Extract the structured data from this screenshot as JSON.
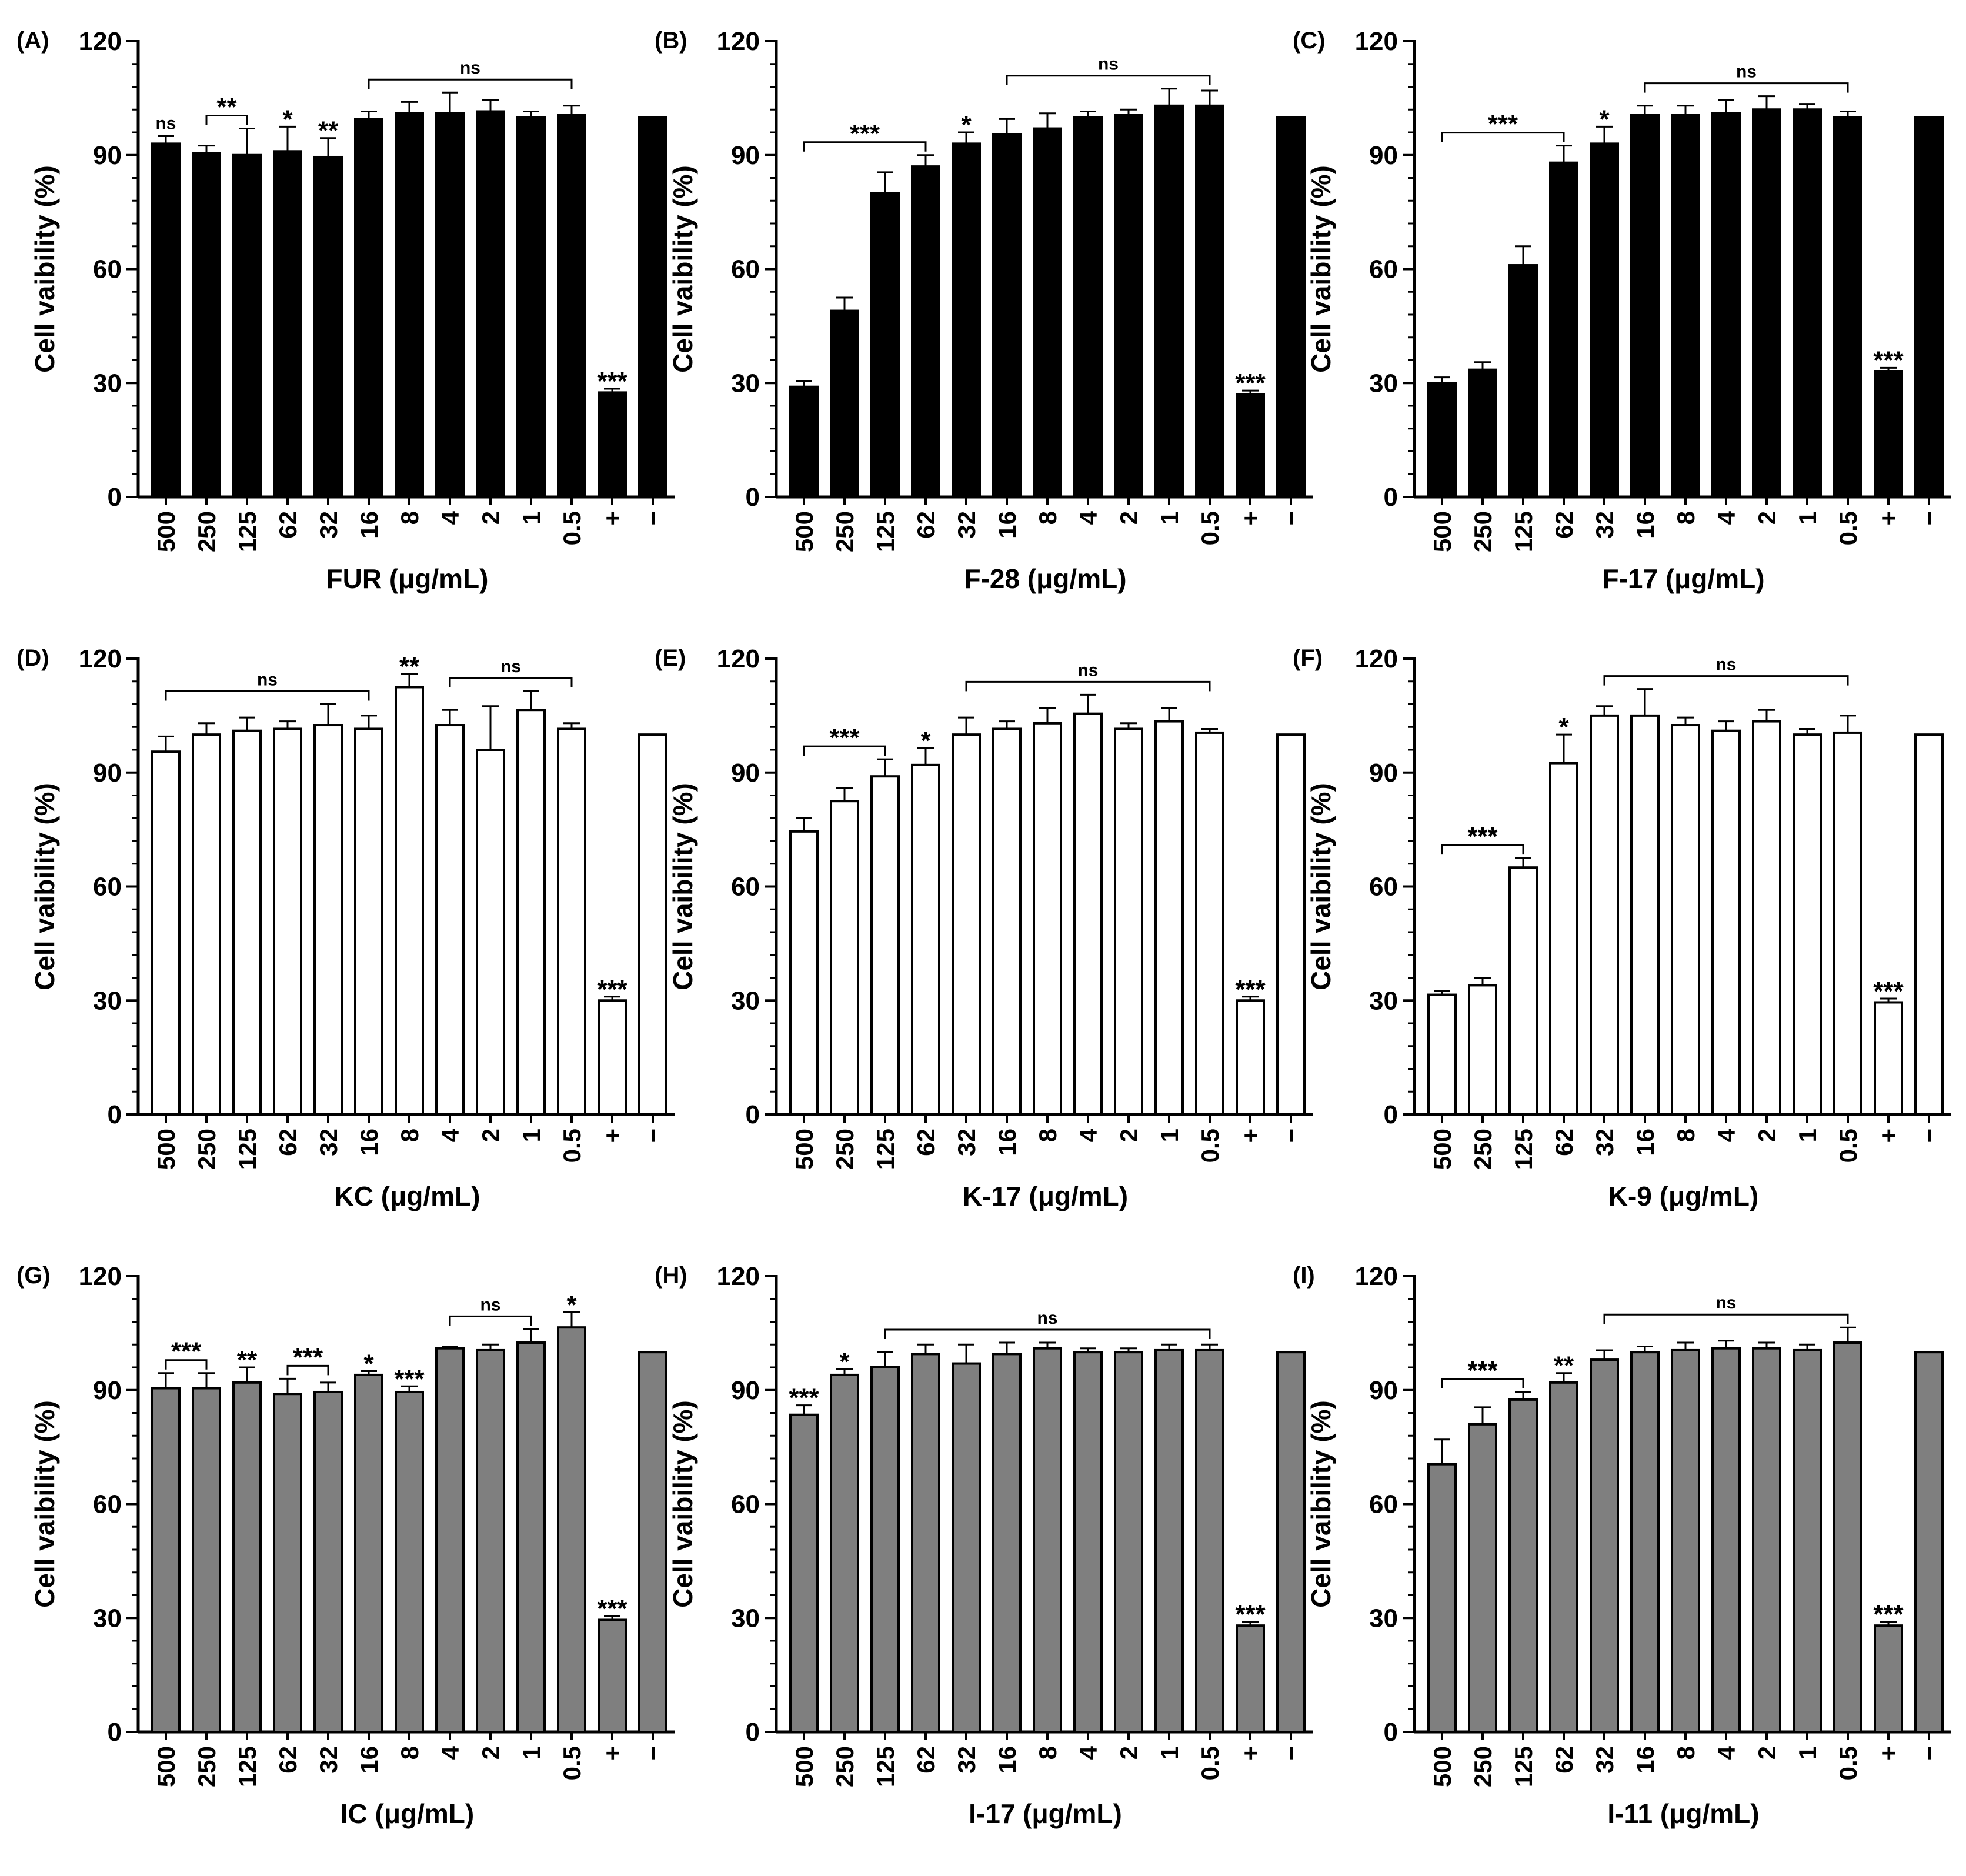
{
  "figure": {
    "y_axis_label": "Cell vaibility (%)"
  },
  "chart_data": [
    {
      "type": "bar",
      "panel": "(A)",
      "xlabel": "FUR (μg/mL)",
      "ylabel": "Cell vaibility (%)",
      "ylim": [
        0,
        120
      ],
      "yticks": [
        0,
        30,
        60,
        90,
        120
      ],
      "bar_color": "#000000",
      "categories": [
        "500",
        "250",
        "125",
        "62",
        "32",
        "16",
        "8",
        "4",
        "2",
        "1",
        "0.5",
        "+",
        "−"
      ],
      "values": [
        93,
        90.5,
        90,
        91,
        89.5,
        99.5,
        101,
        101,
        101.5,
        100,
        100.5,
        27.5,
        100
      ],
      "errors": [
        2,
        2,
        7,
        6.5,
        5,
        2,
        3,
        5.5,
        3,
        1.5,
        2.5,
        1,
        0
      ],
      "annotations": [
        {
          "label": "ns",
          "at": 0,
          "type": "single"
        },
        {
          "label": "**",
          "from": 1,
          "to": 2,
          "type": "bracket"
        },
        {
          "label": "*",
          "at": 3,
          "type": "single"
        },
        {
          "label": "**",
          "at": 4,
          "type": "single"
        },
        {
          "label": "ns",
          "from": 5,
          "to": 10,
          "type": "bracket"
        },
        {
          "label": "***",
          "at": 11,
          "type": "single"
        }
      ]
    },
    {
      "type": "bar",
      "panel": "(B)",
      "xlabel": "F-28 (μg/mL)",
      "ylabel": "Cell vaibility (%)",
      "ylim": [
        0,
        120
      ],
      "yticks": [
        0,
        30,
        60,
        90,
        120
      ],
      "bar_color": "#000000",
      "categories": [
        "500",
        "250",
        "125",
        "62",
        "32",
        "16",
        "8",
        "4",
        "2",
        "1",
        "0.5",
        "+",
        "−"
      ],
      "values": [
        29,
        49,
        80,
        87,
        93,
        95.5,
        97,
        100,
        100.5,
        103,
        103,
        27,
        100
      ],
      "errors": [
        1.5,
        3.5,
        5.5,
        3,
        3,
        4,
        4,
        1.5,
        1.5,
        4.5,
        4,
        1,
        0
      ],
      "annotations": [
        {
          "label": "***",
          "from": 0,
          "to": 3,
          "type": "bracket"
        },
        {
          "label": "*",
          "at": 4,
          "type": "single"
        },
        {
          "label": "ns",
          "from": 5,
          "to": 10,
          "type": "bracket"
        },
        {
          "label": "***",
          "at": 11,
          "type": "single"
        }
      ]
    },
    {
      "type": "bar",
      "panel": "(C)",
      "xlabel": "F-17 (μg/mL)",
      "ylabel": "Cell vaibility (%)",
      "ylim": [
        0,
        120
      ],
      "yticks": [
        0,
        30,
        60,
        90,
        120
      ],
      "bar_color": "#000000",
      "categories": [
        "500",
        "250",
        "125",
        "62",
        "32",
        "16",
        "8",
        "4",
        "2",
        "1",
        "0.5",
        "+",
        "−"
      ],
      "values": [
        30,
        33.5,
        61,
        88,
        93,
        100.5,
        100.5,
        101,
        102,
        102,
        100,
        33,
        100
      ],
      "errors": [
        1.5,
        2,
        5,
        4.5,
        4.5,
        2.5,
        2.5,
        3.5,
        3.5,
        1.5,
        1.5,
        1,
        0
      ],
      "annotations": [
        {
          "label": "***",
          "from": 0,
          "to": 3,
          "type": "bracket"
        },
        {
          "label": "*",
          "at": 4,
          "type": "single"
        },
        {
          "label": "ns",
          "from": 5,
          "to": 10,
          "type": "bracket"
        },
        {
          "label": "***",
          "at": 11,
          "type": "single"
        }
      ]
    },
    {
      "type": "bar",
      "panel": "(D)",
      "xlabel": "KC (μg/mL)",
      "ylabel": "Cell vaibility (%)",
      "ylim": [
        0,
        120
      ],
      "yticks": [
        0,
        30,
        60,
        90,
        120
      ],
      "bar_color": "#ffffff",
      "categories": [
        "500",
        "250",
        "125",
        "62",
        "32",
        "16",
        "8",
        "4",
        "2",
        "1",
        "0.5",
        "+",
        "−"
      ],
      "values": [
        95.5,
        100,
        101,
        101.5,
        102.5,
        101.5,
        112.5,
        102.5,
        96,
        106.5,
        101.5,
        30,
        100
      ],
      "errors": [
        4,
        3,
        3.5,
        2,
        5.5,
        3.5,
        3.5,
        4,
        11.5,
        5,
        1.5,
        1,
        0
      ],
      "annotations": [
        {
          "label": "ns",
          "from": 0,
          "to": 5,
          "type": "bracket"
        },
        {
          "label": "**",
          "at": 6,
          "type": "single"
        },
        {
          "label": "ns",
          "from": 7,
          "to": 10,
          "type": "bracket"
        },
        {
          "label": "***",
          "at": 11,
          "type": "single"
        }
      ]
    },
    {
      "type": "bar",
      "panel": "(E)",
      "xlabel": "K-17 (μg/mL)",
      "ylabel": "Cell vaibility (%)",
      "ylim": [
        0,
        120
      ],
      "yticks": [
        0,
        30,
        60,
        90,
        120
      ],
      "bar_color": "#ffffff",
      "categories": [
        "500",
        "250",
        "125",
        "62",
        "32",
        "16",
        "8",
        "4",
        "2",
        "1",
        "0.5",
        "+",
        "−"
      ],
      "values": [
        74.5,
        82.5,
        89,
        92,
        100,
        101.5,
        103,
        105.5,
        101.5,
        103.5,
        100.5,
        30,
        100
      ],
      "errors": [
        3.5,
        3.5,
        4.5,
        4.5,
        4.5,
        2,
        4,
        5,
        1.5,
        3.5,
        1,
        1,
        0
      ],
      "annotations": [
        {
          "label": "***",
          "from": 0,
          "to": 2,
          "type": "bracket"
        },
        {
          "label": "*",
          "at": 3,
          "type": "single"
        },
        {
          "label": "ns",
          "from": 4,
          "to": 10,
          "type": "bracket"
        },
        {
          "label": "***",
          "at": 11,
          "type": "single"
        }
      ]
    },
    {
      "type": "bar",
      "panel": "(F)",
      "xlabel": "K-9 (μg/mL)",
      "ylabel": "Cell vaibility (%)",
      "ylim": [
        0,
        120
      ],
      "yticks": [
        0,
        30,
        60,
        90,
        120
      ],
      "bar_color": "#ffffff",
      "categories": [
        "500",
        "250",
        "125",
        "62",
        "32",
        "16",
        "8",
        "4",
        "2",
        "1",
        "0.5",
        "+",
        "−"
      ],
      "values": [
        31.5,
        34,
        65,
        92.5,
        105,
        105,
        102.5,
        101,
        103.5,
        100,
        100.5,
        29.5,
        100
      ],
      "errors": [
        1,
        2,
        2.5,
        7.5,
        2.5,
        7,
        2,
        2.5,
        3,
        1.5,
        4.5,
        1,
        0
      ],
      "annotations": [
        {
          "label": "***",
          "from": 0,
          "to": 2,
          "type": "bracket"
        },
        {
          "label": "*",
          "at": 3,
          "type": "single"
        },
        {
          "label": "ns",
          "from": 4,
          "to": 10,
          "type": "bracket"
        },
        {
          "label": "***",
          "at": 11,
          "type": "single"
        }
      ]
    },
    {
      "type": "bar",
      "panel": "(G)",
      "xlabel": "IC (μg/mL)",
      "ylabel": "Cell vaibility (%)",
      "ylim": [
        0,
        120
      ],
      "yticks": [
        0,
        30,
        60,
        90,
        120
      ],
      "bar_color": "#7f7f7f",
      "categories": [
        "500",
        "250",
        "125",
        "62",
        "32",
        "16",
        "8",
        "4",
        "2",
        "1",
        "0.5",
        "+",
        "−"
      ],
      "values": [
        90.5,
        90.5,
        92,
        89,
        89.5,
        94,
        89.5,
        101,
        100.5,
        102.5,
        106.5,
        29.5,
        100
      ],
      "errors": [
        4,
        4,
        4,
        4,
        2.5,
        1,
        1.5,
        0.5,
        1.5,
        3.5,
        4,
        1,
        0
      ],
      "annotations": [
        {
          "label": "***",
          "from": 0,
          "to": 1,
          "type": "bracket"
        },
        {
          "label": "**",
          "at": 2,
          "type": "single"
        },
        {
          "label": "***",
          "from": 3,
          "to": 4,
          "type": "bracket"
        },
        {
          "label": "*",
          "at": 5,
          "type": "single"
        },
        {
          "label": "***",
          "at": 6,
          "type": "single"
        },
        {
          "label": "ns",
          "from": 7,
          "to": 9,
          "type": "bracket"
        },
        {
          "label": "*",
          "at": 10,
          "type": "single"
        },
        {
          "label": "***",
          "at": 11,
          "type": "single"
        }
      ]
    },
    {
      "type": "bar",
      "panel": "(H)",
      "xlabel": "I-17 (μg/mL)",
      "ylabel": "Cell vaibility (%)",
      "ylim": [
        0,
        120
      ],
      "yticks": [
        0,
        30,
        60,
        90,
        120
      ],
      "bar_color": "#7f7f7f",
      "categories": [
        "500",
        "250",
        "125",
        "62",
        "32",
        "16",
        "8",
        "4",
        "2",
        "1",
        "0.5",
        "+",
        "−"
      ],
      "values": [
        83.5,
        94,
        96,
        99.5,
        97,
        99.5,
        101,
        100,
        100,
        100.5,
        100.5,
        28,
        100
      ],
      "errors": [
        2.5,
        1.5,
        4,
        2.5,
        5,
        3,
        1.5,
        1,
        1,
        1.5,
        1.5,
        1,
        0
      ],
      "annotations": [
        {
          "label": "***",
          "at": 0,
          "type": "single"
        },
        {
          "label": "*",
          "at": 1,
          "type": "single"
        },
        {
          "label": "ns",
          "from": 2,
          "to": 10,
          "type": "bracket"
        },
        {
          "label": "***",
          "at": 11,
          "type": "single"
        }
      ]
    },
    {
      "type": "bar",
      "panel": "(I)",
      "xlabel": "I-11 (μg/mL)",
      "ylabel": "Cell vaibility (%)",
      "ylim": [
        0,
        120
      ],
      "yticks": [
        0,
        30,
        60,
        90,
        120
      ],
      "bar_color": "#7f7f7f",
      "categories": [
        "500",
        "250",
        "125",
        "62",
        "32",
        "16",
        "8",
        "4",
        "2",
        "1",
        "0.5",
        "+",
        "−"
      ],
      "values": [
        70.5,
        81,
        87.5,
        92,
        98,
        100,
        100.5,
        101,
        101,
        100.5,
        102.5,
        28,
        100
      ],
      "errors": [
        6.5,
        4.5,
        2,
        2.5,
        2.5,
        1.5,
        2,
        2,
        1.5,
        1.5,
        4,
        1,
        0
      ],
      "annotations": [
        {
          "label": "***",
          "from": 0,
          "to": 2,
          "type": "bracket"
        },
        {
          "label": "**",
          "at": 3,
          "type": "single"
        },
        {
          "label": "ns",
          "from": 4,
          "to": 10,
          "type": "bracket"
        },
        {
          "label": "***",
          "at": 11,
          "type": "single"
        }
      ]
    }
  ]
}
